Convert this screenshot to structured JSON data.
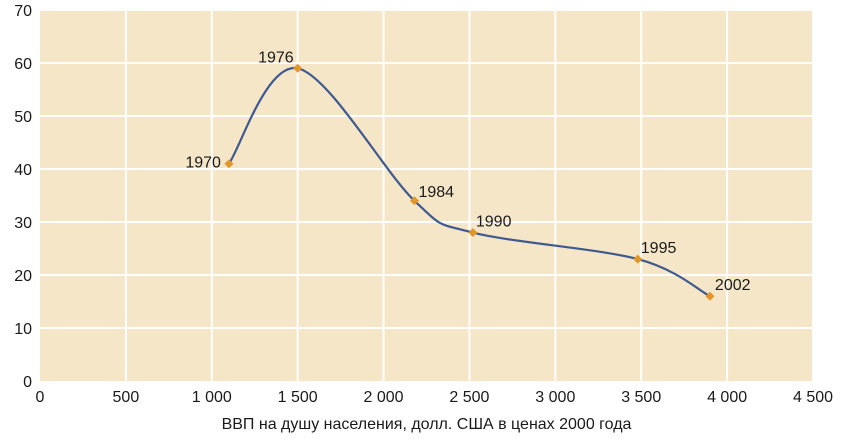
{
  "chart_data": {
    "type": "line",
    "title": "",
    "xlabel": "ВВП на душу населения, долл. США в ценах 2000 года",
    "ylabel": "",
    "xlim": [
      0,
      4500
    ],
    "ylim": [
      0,
      70
    ],
    "x_ticks": [
      0,
      500,
      1000,
      1500,
      2000,
      2500,
      3000,
      3500,
      4000,
      4500
    ],
    "x_tick_labels": [
      "0",
      "500",
      "1 000",
      "1 500",
      "2 000",
      "2 500",
      "3 000",
      "3 500",
      "4 000",
      "4 500"
    ],
    "y_ticks": [
      0,
      10,
      20,
      30,
      40,
      50,
      60,
      70
    ],
    "y_tick_labels": [
      "0",
      "10",
      "20",
      "30",
      "40",
      "50",
      "60",
      "70"
    ],
    "grid": true,
    "legend": "none",
    "series": [
      {
        "points": [
          {
            "x": 1100,
            "y": 41,
            "label": "1970"
          },
          {
            "x": 1500,
            "y": 59,
            "label": "1976"
          },
          {
            "x": 2180,
            "y": 34,
            "label": "1984"
          },
          {
            "x": 2520,
            "y": 28,
            "label": "1990"
          },
          {
            "x": 3480,
            "y": 23,
            "label": "1995"
          },
          {
            "x": 3900,
            "y": 16,
            "label": "2002"
          }
        ]
      }
    ],
    "colors": {
      "plot_background": "#f5e6c8",
      "grid": "#ffffff",
      "line": "#3e5a8f",
      "marker": "#e0962a",
      "text": "#1a1a1a"
    }
  }
}
